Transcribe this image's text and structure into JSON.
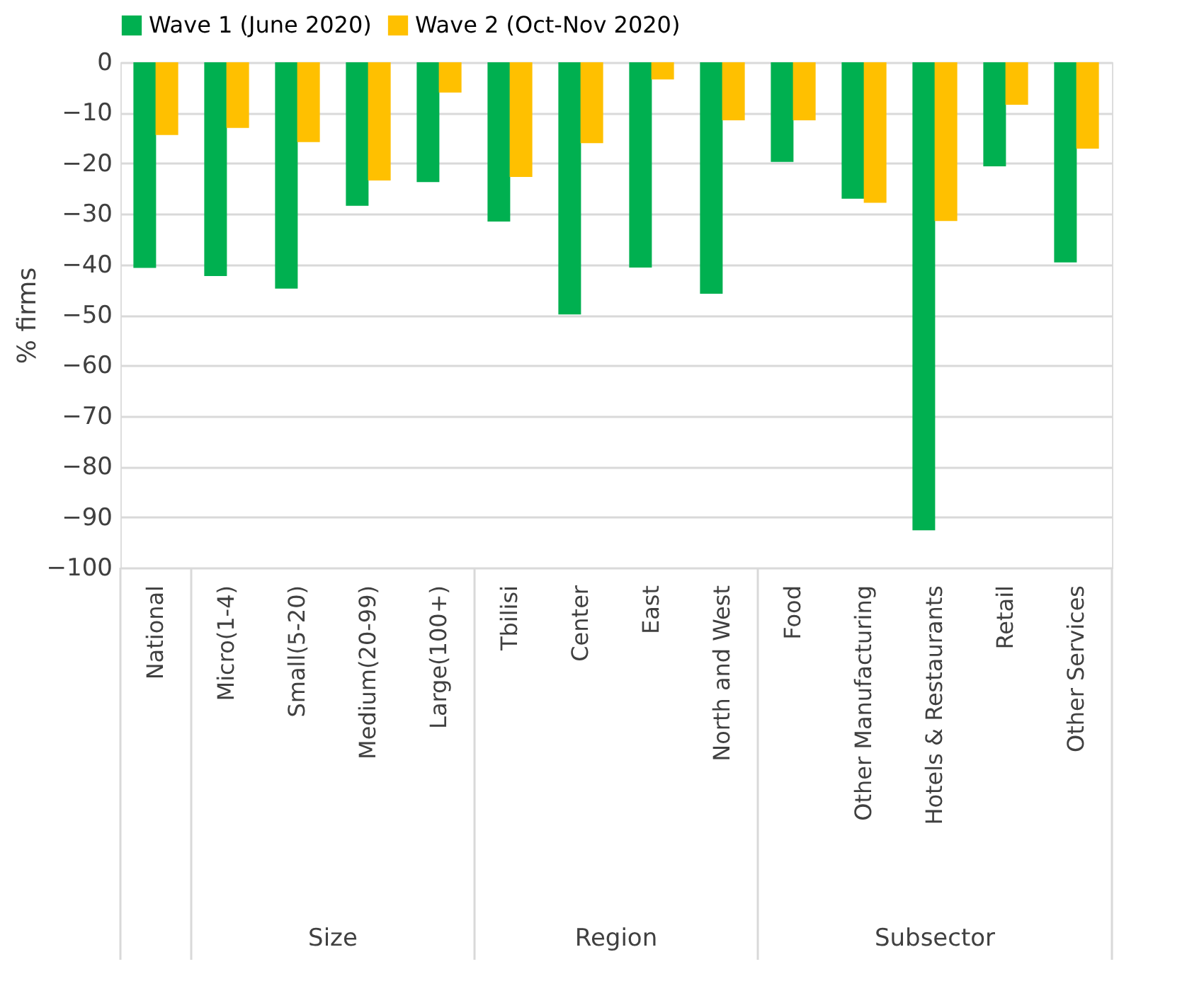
{
  "chart_data": {
    "type": "bar",
    "ylabel": "% firms",
    "categories": [
      "National",
      "Micro(1-4)",
      "Small(5-20)",
      "Medium(20-99)",
      "Large(100+)",
      "Tbilisi",
      "Center",
      "East",
      "North and West",
      "Food",
      "Other Manufacturing",
      "Hotels & Restaurants",
      "Retail",
      "Other Services"
    ],
    "series": [
      {
        "name": "Wave 1 (June 2020)",
        "color": "#00b050",
        "values": [
          -40.7,
          -42.3,
          -44.8,
          -28.4,
          -23.7,
          -31.5,
          -49.9,
          -40.6,
          -45.8,
          -19.7,
          -27.0,
          -92.6,
          -20.6,
          -39.6
        ]
      },
      {
        "name": "Wave 2 (Oct-Nov 2020)",
        "color": "#ffc000",
        "values": [
          -14.4,
          -13.0,
          -15.8,
          -23.4,
          -6.0,
          -22.7,
          -16.0,
          -3.4,
          -11.5,
          -11.5,
          -27.8,
          -31.4,
          -8.4,
          -17.1
        ]
      }
    ],
    "annotations": [
      "Size",
      "Region",
      "Subsector"
    ],
    "ylim": [
      -100,
      0
    ],
    "yticks": [
      0,
      -10,
      -20,
      -30,
      -40,
      -50,
      -60,
      -70,
      -80,
      -90,
      -100
    ],
    "grid": "y",
    "legend": "top"
  }
}
